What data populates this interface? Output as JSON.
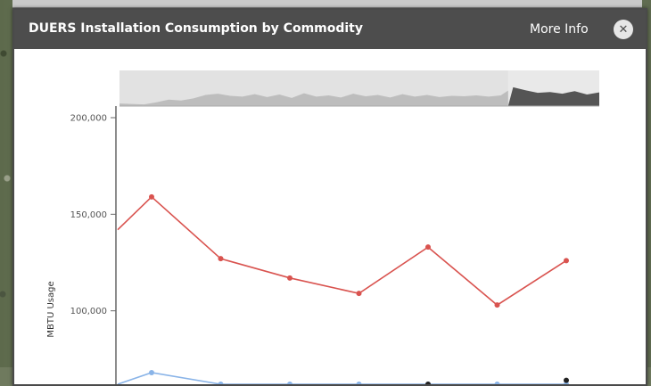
{
  "window": {
    "title": "DUERS Installation Consumption by Commodity",
    "more_info": "More Info",
    "close_icon": "close-icon"
  },
  "colors": {
    "header": "#4d4d4d",
    "navigator_unselected": "#d8d8d8",
    "navigator_selected": "#555555",
    "series_red": "#d9534f",
    "series_blue": "#8ab4e8",
    "series_dark": "#222222"
  },
  "chart_data": {
    "type": "line",
    "ylabel": "MBTU Usage",
    "ylim": [
      62000,
      206000
    ],
    "yticks": [
      {
        "value": 200000,
        "label": "200,000"
      },
      {
        "value": 150000,
        "label": "150,000"
      },
      {
        "value": 100000,
        "label": "100,000"
      }
    ],
    "grid": false,
    "series": [
      {
        "color": "#d9534f",
        "line_start": 142000,
        "values": [
          159000,
          127000,
          117000,
          109000,
          133000,
          103000,
          126000
        ]
      },
      {
        "color": "#8ab4e8",
        "line_start": 62000,
        "values": [
          68000,
          62000,
          62000,
          62000,
          62000,
          62000,
          62000
        ]
      },
      {
        "color": "#222222",
        "values": [
          null,
          null,
          null,
          null,
          62000,
          null,
          64000
        ]
      }
    ],
    "navigator": {
      "series": [
        0.12,
        0.1,
        0.08,
        0.18,
        0.3,
        0.26,
        0.36,
        0.52,
        0.58,
        0.48,
        0.44,
        0.56,
        0.42,
        0.54,
        0.38,
        0.6,
        0.44,
        0.5,
        0.4,
        0.58,
        0.46,
        0.52,
        0.4,
        0.56,
        0.44,
        0.52,
        0.42,
        0.48,
        0.46,
        0.5,
        0.44,
        0.5,
        0.88,
        0.74,
        0.62,
        0.66,
        0.58,
        0.7,
        0.54,
        0.64
      ],
      "selected_from": 0.81
    }
  }
}
